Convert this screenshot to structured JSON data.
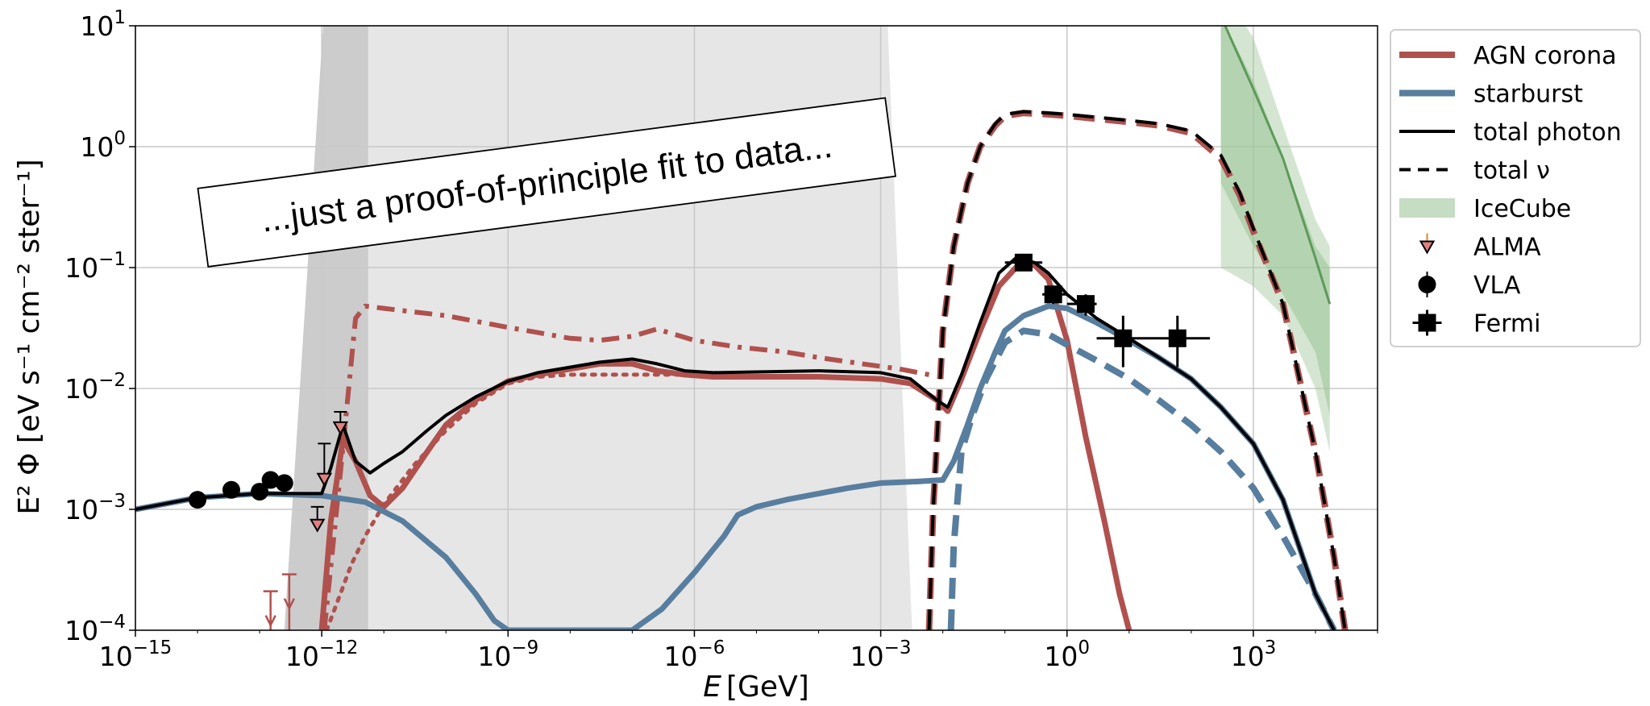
{
  "chart_data": {
    "type": "line",
    "xlabel_var": "E",
    "xlabel_unit": "[GeV]",
    "ylabel": "E² Φ [eV s⁻¹ cm⁻² ster⁻¹]",
    "xscale": "log",
    "yscale": "log",
    "xlim": [
      1e-15,
      100000.0
    ],
    "ylim": [
      0.0001,
      10
    ],
    "grid": true,
    "legend_position": "upper-right-outside",
    "xticks": [
      {
        "base": "10",
        "exp": "−15",
        "value": 1e-15
      },
      {
        "base": "10",
        "exp": "−12",
        "value": 1e-12
      },
      {
        "base": "10",
        "exp": "−9",
        "value": 1e-09
      },
      {
        "base": "10",
        "exp": "−6",
        "value": 1e-06
      },
      {
        "base": "10",
        "exp": "−3",
        "value": 0.001
      },
      {
        "base": "10",
        "exp": "0",
        "value": 1
      },
      {
        "base": "10",
        "exp": "3",
        "value": 1000.0
      }
    ],
    "yticks": [
      {
        "base": "10",
        "exp": "−4",
        "value": 0.0001
      },
      {
        "base": "10",
        "exp": "−3",
        "value": 0.001
      },
      {
        "base": "10",
        "exp": "−2",
        "value": 0.01
      },
      {
        "base": "10",
        "exp": "−1",
        "value": 0.1
      },
      {
        "base": "10",
        "exp": "0",
        "value": 1
      },
      {
        "base": "10",
        "exp": "1",
        "value": 10
      }
    ],
    "annotation": "...just a proof-of-principle fit to data...",
    "colors": {
      "agn": "#b0514e",
      "starburst": "#587e9f",
      "total": "#000000",
      "icecube_fill": "#9fc79a",
      "icecube_line": "#5e9a5a",
      "alma": "#e08080",
      "band_dark": "#cccccc",
      "band_light": "#e6e6e6",
      "grid": "#c8c8c8"
    },
    "legend": [
      {
        "label": "AGN corona",
        "kind": "line",
        "color": "#b0514e"
      },
      {
        "label": "starburst",
        "kind": "line",
        "color": "#587e9f"
      },
      {
        "label": "total photon",
        "kind": "line",
        "color": "#000000"
      },
      {
        "label": "total ν",
        "kind": "dashed",
        "color": "#000000"
      },
      {
        "label": "IceCube",
        "kind": "patch",
        "color": "#9fc79a"
      },
      {
        "label": "ALMA",
        "kind": "triangle",
        "color": "#e08080"
      },
      {
        "label": "VLA",
        "kind": "circle",
        "color": "#000000"
      },
      {
        "label": "Fermi",
        "kind": "square",
        "color": "#000000"
      }
    ],
    "bands": [
      {
        "name": "dark-band",
        "x": [
          [
            1e-12,
            5.6e-12
          ],
          [
            8e-11,
            1e-13
          ],
          [
            2.5e-12,
            7.9e-12
          ]
        ]
      },
      {
        "name": "light-band",
        "x_start_left": 4e-12,
        "x_start_right": 5.6e-12
      }
    ],
    "series": [
      {
        "key": "agn_photon",
        "style": "solid",
        "color": "#b0514e",
        "width": 7,
        "x": [
          1e-12,
          1.4e-12,
          2.2e-12,
          3.5e-12,
          6e-12,
          1e-11,
          2e-11,
          5e-11,
          1e-10,
          3e-10,
          1e-09,
          3e-09,
          1e-08,
          3e-08,
          1e-07,
          2.5e-07,
          7e-07,
          2e-06,
          1e-05,
          0.0001,
          0.001,
          0.003,
          0.008,
          0.012,
          0.02,
          0.04,
          0.08,
          0.15,
          0.3,
          0.5,
          1,
          2,
          4,
          7,
          10
        ],
        "y": [
          0.0001,
          0.0008,
          0.0038,
          0.0025,
          0.0013,
          0.00105,
          0.0015,
          0.003,
          0.005,
          0.008,
          0.0115,
          0.013,
          0.0145,
          0.016,
          0.016,
          0.014,
          0.013,
          0.0125,
          0.0125,
          0.0125,
          0.012,
          0.011,
          0.008,
          0.0065,
          0.012,
          0.03,
          0.07,
          0.1,
          0.105,
          0.08,
          0.025,
          0.004,
          0.0008,
          0.0002,
          0.0001
        ]
      },
      {
        "key": "agn_dotted",
        "style": "dotted",
        "color": "#b0514e",
        "width": 5,
        "x": [
          1.2e-12,
          2e-12,
          3e-12,
          5e-12,
          1e-11,
          3e-11,
          1e-10,
          3e-10,
          1e-09,
          3e-09,
          1e-08,
          3e-08,
          1e-07,
          1e-06,
          1e-05
        ],
        "y": [
          0.0001,
          0.0002,
          0.00035,
          0.0006,
          0.0011,
          0.0023,
          0.0045,
          0.0075,
          0.011,
          0.0125,
          0.013,
          0.013,
          0.013,
          0.013,
          0.0125
        ]
      },
      {
        "key": "agn_dashdot",
        "style": "dashdot",
        "color": "#b0514e",
        "width": 6,
        "x": [
          1.1e-12,
          2e-12,
          3.5e-12,
          5e-12,
          1e-11,
          3e-11,
          1e-10,
          3e-10,
          1e-09,
          3e-09,
          1e-08,
          3e-08,
          1e-07,
          2.5e-07,
          1e-06,
          5e-06,
          3e-05,
          0.0001,
          0.0005,
          0.002,
          0.006
        ],
        "y": [
          0.0001,
          0.002,
          0.038,
          0.048,
          0.046,
          0.043,
          0.04,
          0.036,
          0.032,
          0.029,
          0.026,
          0.025,
          0.027,
          0.031,
          0.025,
          0.022,
          0.02,
          0.018,
          0.016,
          0.0145,
          0.013
        ]
      },
      {
        "key": "starburst_photon",
        "style": "solid",
        "color": "#587e9f",
        "width": 7,
        "x": [
          1e-15,
          1e-14,
          1e-13,
          1e-12,
          5e-12,
          2e-11,
          1e-10,
          3e-10,
          6e-10,
          1e-09,
          1e-07,
          3e-07,
          1e-06,
          3e-06,
          5e-06,
          1e-05,
          3e-05,
          0.0001,
          0.0003,
          0.001,
          0.004,
          0.01,
          0.015,
          0.025,
          0.04,
          0.07,
          0.1,
          0.2,
          0.5,
          1,
          3,
          10,
          30,
          100,
          300,
          1000.0,
          3000.0,
          10000.0,
          20000.0
        ],
        "y": [
          0.001,
          0.00125,
          0.00135,
          0.0013,
          0.00115,
          0.0008,
          0.0004,
          0.0002,
          0.00012,
          0.0001,
          0.0001,
          0.00015,
          0.0003,
          0.0006,
          0.0009,
          0.00105,
          0.0012,
          0.00135,
          0.0015,
          0.00165,
          0.0017,
          0.00175,
          0.0025,
          0.005,
          0.01,
          0.02,
          0.03,
          0.04,
          0.048,
          0.046,
          0.035,
          0.025,
          0.018,
          0.012,
          0.007,
          0.0035,
          0.0012,
          0.0002,
          0.0001
        ]
      },
      {
        "key": "starburst_nu",
        "style": "dashed",
        "color": "#587e9f",
        "width": 8,
        "x": [
          0.0135,
          0.015,
          0.02,
          0.03,
          0.05,
          0.1,
          0.2,
          0.5,
          1,
          3,
          10,
          30,
          100,
          300,
          1000.0,
          3000.0,
          10000.0,
          20000.0
        ],
        "y": [
          0.0001,
          0.0005,
          0.003,
          0.006,
          0.012,
          0.024,
          0.03,
          0.028,
          0.023,
          0.017,
          0.012,
          0.008,
          0.005,
          0.003,
          0.0015,
          0.0006,
          0.0002,
          0.0001
        ]
      },
      {
        "key": "agn_nu",
        "style": "dashed",
        "color": "#b0514e",
        "width": 8,
        "x": [
          0.006,
          0.007,
          0.01,
          0.015,
          0.025,
          0.04,
          0.07,
          0.1,
          0.2,
          0.5,
          1,
          3,
          10,
          30,
          100,
          300,
          600,
          1000.0,
          3000.0,
          10000.0,
          20000.0,
          30000.0
        ],
        "y": [
          0.0001,
          0.001,
          0.03,
          0.15,
          0.5,
          1,
          1.5,
          1.8,
          1.9,
          1.85,
          1.8,
          1.7,
          1.6,
          1.5,
          1.3,
          0.8,
          0.4,
          0.2,
          0.05,
          0.003,
          0.0004,
          0.0001
        ]
      },
      {
        "key": "total_nu",
        "style": "dashed",
        "color": "#000000",
        "width": 4,
        "x": [
          0.006,
          0.007,
          0.01,
          0.015,
          0.025,
          0.04,
          0.07,
          0.1,
          0.2,
          0.5,
          1,
          3,
          10,
          30,
          100,
          300,
          600,
          1000.0,
          3000.0,
          10000.0,
          20000.0,
          30000.0
        ],
        "y": [
          0.0001,
          0.001,
          0.03,
          0.15,
          0.5,
          1,
          1.55,
          1.85,
          1.95,
          1.9,
          1.85,
          1.75,
          1.65,
          1.55,
          1.35,
          0.85,
          0.42,
          0.21,
          0.05,
          0.003,
          0.0004,
          0.0001
        ]
      },
      {
        "key": "total_photon",
        "style": "solid",
        "color": "#000000",
        "width": 4,
        "x": [
          1e-15,
          1e-14,
          1e-13,
          1e-12,
          1.4e-12,
          2.2e-12,
          3.5e-12,
          6e-12,
          1e-11,
          2e-11,
          5e-11,
          1e-10,
          3e-10,
          1e-09,
          3e-09,
          1e-08,
          3e-08,
          1e-07,
          2.5e-07,
          7e-07,
          2e-06,
          1e-05,
          0.0001,
          0.001,
          0.003,
          0.008,
          0.012,
          0.02,
          0.04,
          0.08,
          0.15,
          0.3,
          0.5,
          1,
          3,
          10,
          30,
          100,
          300,
          1000.0,
          3000.0,
          10000.0,
          20000.0
        ],
        "y": [
          0.001,
          0.00125,
          0.00135,
          0.00135,
          0.0022,
          0.005,
          0.0025,
          0.002,
          0.0024,
          0.003,
          0.0045,
          0.006,
          0.0085,
          0.0115,
          0.0135,
          0.015,
          0.0165,
          0.0175,
          0.016,
          0.014,
          0.0135,
          0.0137,
          0.014,
          0.0135,
          0.012,
          0.008,
          0.007,
          0.013,
          0.035,
          0.09,
          0.12,
          0.11,
          0.09,
          0.06,
          0.038,
          0.026,
          0.018,
          0.012,
          0.007,
          0.0035,
          0.0012,
          0.0002,
          0.0001
        ]
      }
    ],
    "icecube": {
      "outer_x": [
        300,
        1000.0,
        3000.0,
        10000.0,
        17000.0,
        17000.0,
        10000.0,
        3000.0,
        1000.0,
        300
      ],
      "outer_y": [
        20,
        8,
        1.5,
        0.25,
        0.15,
        0.003,
        0.01,
        0.04,
        0.07,
        0.1
      ],
      "inner_x": [
        300,
        1000.0,
        3000.0,
        10000.0,
        17000.0,
        17000.0,
        10000.0,
        3000.0,
        1000.0,
        300
      ],
      "inner_y": [
        12,
        3.5,
        0.8,
        0.15,
        0.1,
        0.006,
        0.02,
        0.06,
        0.15,
        0.5
      ],
      "line_x": [
        300,
        1000.0,
        3000.0,
        10000.0,
        17000.0
      ],
      "line_y": [
        12,
        3,
        0.8,
        0.12,
        0.05
      ]
    },
    "vla": [
      {
        "x": 1e-14,
        "y": 0.0012
      },
      {
        "x": 3.5e-14,
        "y": 0.00145
      },
      {
        "x": 1e-13,
        "y": 0.0014
      },
      {
        "x": 1.5e-13,
        "y": 0.00175
      },
      {
        "x": 2.5e-13,
        "y": 0.00165
      }
    ],
    "alma": [
      {
        "x": 8.5e-13,
        "y": 0.00075,
        "err_up": 0.0009
      },
      {
        "x": 1.1e-12,
        "y": 0.0018,
        "err_up": 0.003
      },
      {
        "x": 2e-12,
        "y": 0.0048,
        "err_up": 0.0055
      }
    ],
    "radio_limits": [
      {
        "x": 1.5e-13,
        "y_top": 0.00021
      },
      {
        "x": 3e-13,
        "y_top": 0.00029
      }
    ],
    "fermi": [
      {
        "x": 0.2,
        "y": 0.11,
        "xerr": [
          0.1,
          0.4
        ],
        "yerr": [
          0.1,
          0.13
        ]
      },
      {
        "x": 0.6,
        "y": 0.06,
        "xerr": [
          0.4,
          1
        ],
        "yerr": [
          0.05,
          0.07
        ]
      },
      {
        "x": 2,
        "y": 0.05,
        "xerr": [
          1,
          3
        ],
        "yerr": [
          0.04,
          0.06
        ]
      },
      {
        "x": 8,
        "y": 0.026,
        "xerr": [
          3,
          20
        ],
        "yerr": [
          0.015,
          0.04
        ]
      },
      {
        "x": 60,
        "y": 0.026,
        "xerr": [
          20,
          200
        ],
        "yerr": [
          0.015,
          0.04
        ]
      }
    ]
  }
}
